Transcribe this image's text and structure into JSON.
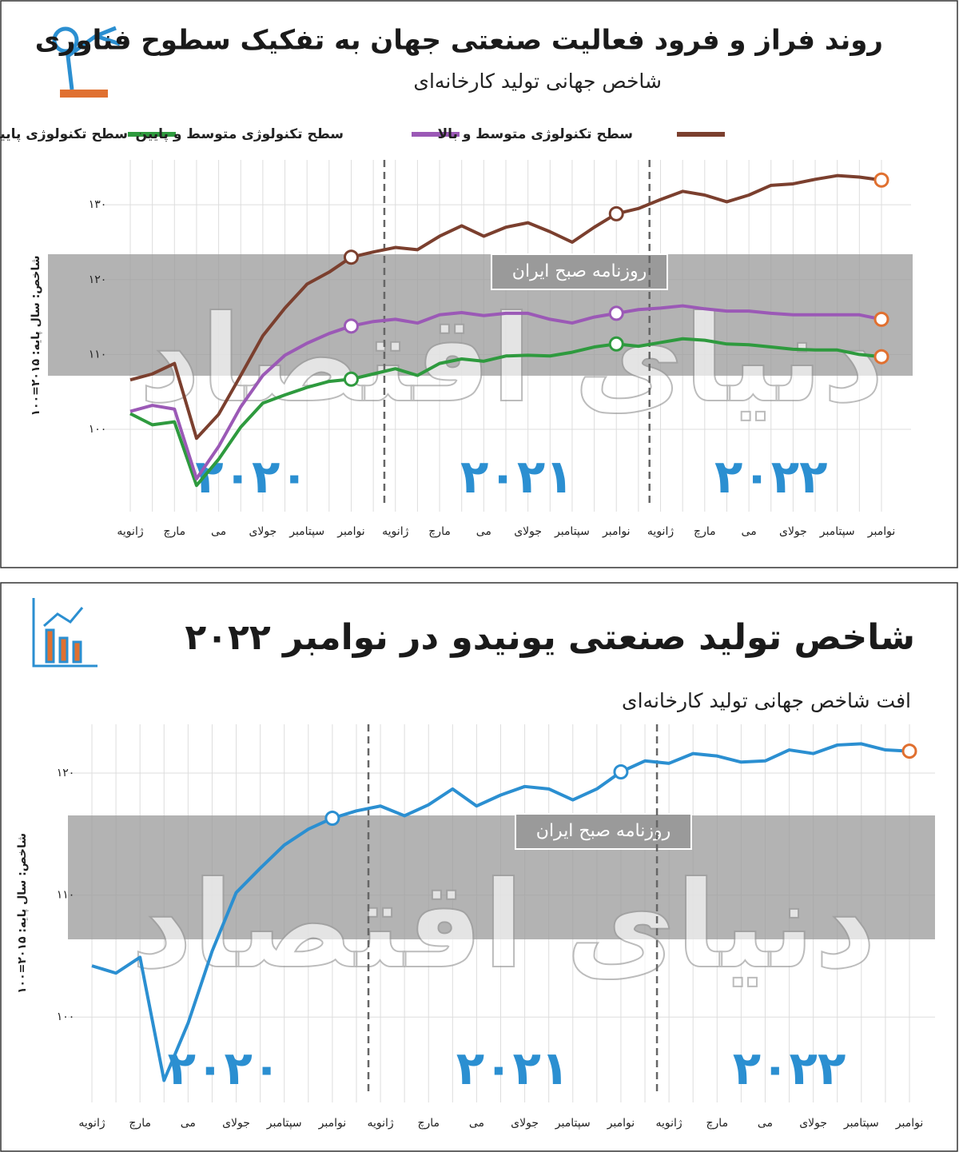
{
  "watermarks": [
    "دنیای اقتصاد",
    "روزنامه صبح ایران"
  ],
  "chart_data": [
    {
      "type": "line",
      "title": "روند فراز و فرود فعالیت صنعتی جهان به تفکیک سطوح فناوری",
      "subtitle": "شاخص جهانی تولید کارخانه‌ای",
      "y_label": "شاخص: سال پایه: ۲۰۱۵=۱۰۰",
      "year_labels": [
        "۲۰۲۰",
        "۲۰۲۱",
        "۲۰۲۲"
      ],
      "categories": [
        "ژانویه",
        null,
        "مارچ",
        null,
        "می",
        null,
        "جولای",
        null,
        "سپتامبر",
        null,
        "نوامبر",
        null,
        "ژانویه",
        null,
        "مارچ",
        null,
        "می",
        null,
        "جولای",
        null,
        "سپتامبر",
        null,
        "نوامبر",
        null,
        "ژانویه",
        null,
        "مارچ",
        null,
        "می",
        null,
        "جولای",
        null,
        "سپتامبر",
        null,
        "نوامبر"
      ],
      "series": [
        {
          "name": "سطح تکنولوژی پایین",
          "color": "#2e9a3e",
          "values": [
            102.1,
            100.6,
            101,
            92.5,
            96,
            100.3,
            103.5,
            104.6,
            105.6,
            106.4,
            106.7,
            107.4,
            108.1,
            107.2,
            108.8,
            109.4,
            109.1,
            109.8,
            109.9,
            109.8,
            110.3,
            111,
            111.4,
            111.1,
            111.6,
            112.1,
            111.9,
            111.4,
            111.3,
            111,
            110.7,
            110.6,
            110.6,
            110,
            109.7
          ]
        },
        {
          "name": "سطح تکنولوژی متوسط و پایین",
          "color": "#9b59b6",
          "values": [
            102.4,
            103.2,
            102.7,
            93.4,
            97.7,
            103,
            107.2,
            109.9,
            111.5,
            112.8,
            113.8,
            114.4,
            114.7,
            114.2,
            115.3,
            115.6,
            115.2,
            115.5,
            115.5,
            114.7,
            114.2,
            115,
            115.5,
            116,
            116.2,
            116.5,
            116.1,
            115.8,
            115.8,
            115.5,
            115.3,
            115.3,
            115.3,
            115.3,
            114.7
          ]
        },
        {
          "name": "سطح تکنولوژی متوسط و بالا",
          "color": "#7b3f2e",
          "values": [
            106.6,
            107.4,
            108.8,
            98.8,
            102,
            107.2,
            112.5,
            116.2,
            119.4,
            121,
            123,
            123.7,
            124.3,
            124,
            125.8,
            127.2,
            125.8,
            127,
            127.6,
            126.4,
            125,
            127,
            128.8,
            129.5,
            130.7,
            131.8,
            131.3,
            130.4,
            131.3,
            132.6,
            132.8,
            133.4,
            133.9,
            133.7,
            133.3
          ]
        }
      ],
      "ylim": [
        89,
        136
      ],
      "yticks": [
        {
          "value": 100,
          "label": "۱۰۰"
        },
        {
          "value": 110,
          "label": "۱۱۰"
        },
        {
          "value": 120,
          "label": "۱۲۰"
        },
        {
          "value": 130,
          "label": "۱۳۰"
        }
      ],
      "grid": true,
      "legend": "top",
      "marker_color": "#e07030"
    },
    {
      "type": "line",
      "title": "شاخص تولید صنعتی یونیدو در نوامبر ۲۰۲۲",
      "subtitle": "افت شاخص جهانی تولید کارخانه‌ای",
      "y_label": "شاخص: سال پایه: ۲۰۱۵=۱۰۰",
      "year_labels": [
        "۲۰۲۰",
        "۲۰۲۱",
        "۲۰۲۲"
      ],
      "categories": [
        "ژانویه",
        null,
        "مارچ",
        null,
        "می",
        null,
        "جولای",
        null,
        "سپتامبر",
        null,
        "نوامبر",
        null,
        "ژانویه",
        null,
        "مارچ",
        null,
        "می",
        null,
        "جولای",
        null,
        "سپتامبر",
        null,
        "نوامبر",
        null,
        "ژانویه",
        null,
        "مارچ",
        null,
        "می",
        null,
        "جولای",
        null,
        "سپتامبر",
        null,
        "نوامبر"
      ],
      "series": [
        {
          "color": "#2b8fd1",
          "values": [
            104.2,
            103.6,
            104.9,
            94.8,
            99.5,
            105.4,
            110.2,
            112.2,
            114.1,
            115.4,
            116.3,
            116.9,
            117.3,
            116.5,
            117.4,
            118.7,
            117.3,
            118.2,
            118.9,
            118.7,
            117.8,
            118.7,
            120.1,
            121,
            120.8,
            121.6,
            121.4,
            120.9,
            121,
            121.9,
            121.6,
            122.3,
            122.4,
            121.9,
            121.8
          ]
        }
      ],
      "ylim": [
        93,
        124
      ],
      "yticks": [
        {
          "value": 100,
          "label": "۱۰۰"
        },
        {
          "value": 110,
          "label": "۱۱۰"
        },
        {
          "value": 120,
          "label": "۱۲۰"
        }
      ],
      "grid": true,
      "marker_color": "#e07030"
    }
  ]
}
